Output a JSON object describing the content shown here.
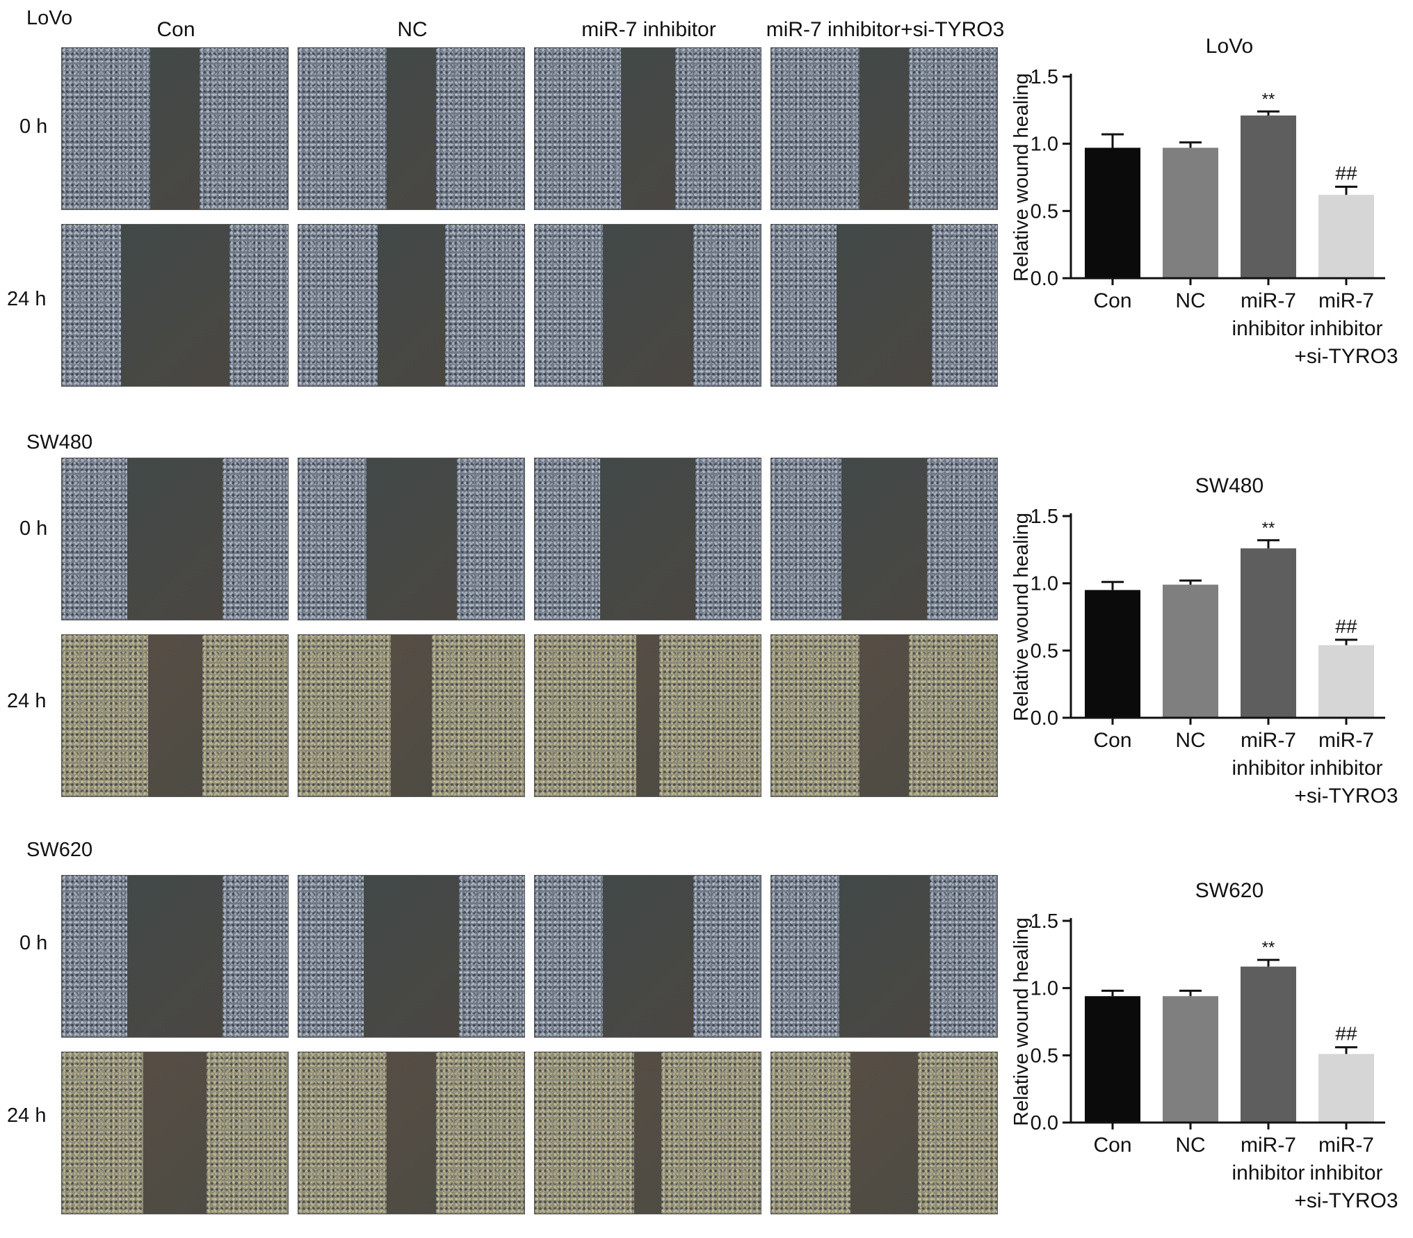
{
  "columns": [
    "Con",
    "NC",
    "miR-7 inhibitor",
    "miR-7 inhibitor+si-TYRO3"
  ],
  "times": [
    "0 h",
    "24 h"
  ],
  "panels": [
    {
      "cell_line": "LoVo"
    },
    {
      "cell_line": "SW480"
    },
    {
      "cell_line": "SW620"
    }
  ],
  "colors": {
    "tissue_cool": "#6f7884",
    "tissue_warm": "#8c8a78",
    "gap_cool": "#3f4a4a",
    "gap_warm": "#5a4f45",
    "bar_con": "#0b0b0b",
    "bar_nc": "#7f7f7f",
    "bar_inhibitor": "#5e5e5e",
    "bar_combo": "#d6d6d6"
  },
  "chart_data": [
    {
      "type": "bar",
      "title": "LoVo",
      "ylabel": "Relative wound healing",
      "xlabel": "",
      "categories": [
        "Con",
        "NC",
        "miR-7 inhibitor",
        "miR-7 inhibitor +si-TYRO3"
      ],
      "category_lines": [
        [
          "Con"
        ],
        [
          "NC"
        ],
        [
          "miR-7",
          "inhibitor"
        ],
        [
          "miR-7",
          "inhibitor",
          "+si-TYRO3"
        ]
      ],
      "values": [
        0.97,
        0.97,
        1.21,
        0.62
      ],
      "errors": [
        0.1,
        0.04,
        0.03,
        0.06
      ],
      "annotations": [
        "",
        "",
        "**",
        "##"
      ],
      "ylim": [
        0,
        1.5
      ],
      "yticks": [
        "0.0",
        "0.5",
        "1.0",
        "1.5"
      ]
    },
    {
      "type": "bar",
      "title": "SW480",
      "ylabel": "Relative wound healing",
      "xlabel": "",
      "categories": [
        "Con",
        "NC",
        "miR-7 inhibitor",
        "miR-7 inhibitor +si-TYRO3"
      ],
      "category_lines": [
        [
          "Con"
        ],
        [
          "NC"
        ],
        [
          "miR-7",
          "inhibitor"
        ],
        [
          "miR-7",
          "inhibitor",
          "+si-TYRO3"
        ]
      ],
      "values": [
        0.95,
        0.99,
        1.26,
        0.54
      ],
      "errors": [
        0.06,
        0.03,
        0.06,
        0.04
      ],
      "annotations": [
        "",
        "",
        "**",
        "##"
      ],
      "ylim": [
        0,
        1.5
      ],
      "yticks": [
        "0.0",
        "0.5",
        "1.0",
        "1.5"
      ]
    },
    {
      "type": "bar",
      "title": "SW620",
      "ylabel": "Relative wound healing",
      "xlabel": "",
      "categories": [
        "Con",
        "NC",
        "miR-7 inhibitor",
        "miR-7 inhibitor +si-TYRO3"
      ],
      "category_lines": [
        [
          "Con"
        ],
        [
          "NC"
        ],
        [
          "miR-7",
          "inhibitor"
        ],
        [
          "miR-7",
          "inhibitor",
          "+si-TYRO3"
        ]
      ],
      "values": [
        0.94,
        0.94,
        1.16,
        0.51
      ],
      "errors": [
        0.04,
        0.04,
        0.05,
        0.05
      ],
      "annotations": [
        "",
        "",
        "**",
        "##"
      ],
      "ylim": [
        0,
        1.5
      ],
      "yticks": [
        "0.0",
        "0.5",
        "1.0",
        "1.5"
      ]
    }
  ]
}
